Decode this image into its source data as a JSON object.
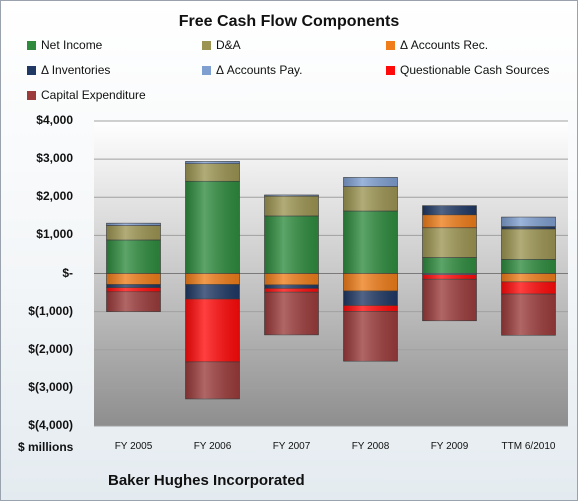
{
  "chart_data": {
    "type": "bar",
    "stacked": true,
    "title": "Free Cash Flow Components",
    "unit_label": "$ millions",
    "footer": "Baker Hughes Incorporated",
    "categories": [
      "FY 2005",
      "FY 2006",
      "FY 2007",
      "FY 2008",
      "FY 2009",
      "TTM 6/2010"
    ],
    "y_ticks": [
      {
        "value": 4000,
        "label": "$4,000"
      },
      {
        "value": 3000,
        "label": "$3,000"
      },
      {
        "value": 2000,
        "label": "$2,000"
      },
      {
        "value": 1000,
        "label": "$1,000"
      },
      {
        "value": 0,
        "label": "$-"
      },
      {
        "value": -1000,
        "label": "$(1,000)"
      },
      {
        "value": -2000,
        "label": "$(2,000)"
      },
      {
        "value": -3000,
        "label": "$(3,000)"
      },
      {
        "value": -4000,
        "label": "$(4,000)"
      }
    ],
    "ylim": [
      -4000,
      4000
    ],
    "grid": true,
    "legend_position": "top",
    "series": [
      {
        "name": "Net Income",
        "color": "#2e8b3e",
        "values": [
          880,
          2420,
          1510,
          1640,
          420,
          370
        ]
      },
      {
        "name": "D&A",
        "color": "#9c9452",
        "values": [
          380,
          460,
          520,
          640,
          780,
          800
        ]
      },
      {
        "name": "Δ Accounts Rec.",
        "color": "#ee7d1a",
        "values": [
          -290,
          -290,
          -300,
          -460,
          340,
          -220
        ]
      },
      {
        "name": "Δ Inventories",
        "color": "#1f3864",
        "values": [
          -80,
          -380,
          -90,
          -380,
          240,
          60
        ]
      },
      {
        "name": "Δ Accounts Pay.",
        "color": "#7f9fd0",
        "values": [
          60,
          60,
          30,
          240,
          -30,
          250
        ]
      },
      {
        "name": "Questionable Cash Sources",
        "color": "#ff0a0a",
        "values": [
          -110,
          -1650,
          -100,
          -160,
          -120,
          -320
        ]
      },
      {
        "name": "Capital Expenditure",
        "color": "#9b3b3b",
        "values": [
          -520,
          -970,
          -1120,
          -1300,
          -1090,
          -1080
        ]
      }
    ]
  }
}
